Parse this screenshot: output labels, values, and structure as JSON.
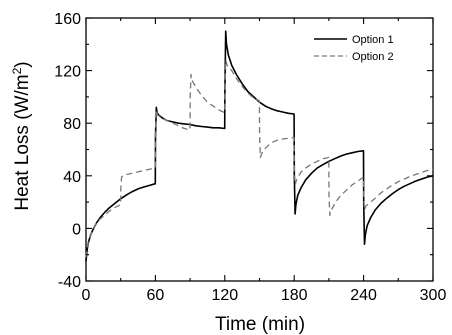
{
  "chart_data": {
    "type": "line",
    "xlabel": "Time (min)",
    "ylabel_main": "Heat Loss (W/m",
    "ylabel_sup": "2",
    "ylabel_end": ")",
    "xlim": [
      0,
      300
    ],
    "ylim": [
      -40,
      160
    ],
    "x_ticks": [
      0,
      60,
      120,
      180,
      240,
      300
    ],
    "y_ticks": [
      -40,
      0,
      40,
      80,
      120,
      160
    ],
    "grid": false,
    "legend_position": "top-right",
    "series": [
      {
        "name": "Option 1",
        "style": "solid",
        "color": "#000000",
        "points": [
          [
            0,
            -25
          ],
          [
            1,
            -16
          ],
          [
            2,
            -11
          ],
          [
            4,
            -5
          ],
          [
            6,
            -1
          ],
          [
            9,
            4
          ],
          [
            12,
            8
          ],
          [
            16,
            12
          ],
          [
            20,
            15.5
          ],
          [
            25,
            19
          ],
          [
            30,
            22.5
          ],
          [
            35,
            25.5
          ],
          [
            40,
            28
          ],
          [
            45,
            30
          ],
          [
            50,
            31.5
          ],
          [
            55,
            32.7
          ],
          [
            59.9,
            34
          ],
          [
            60.1,
            70
          ],
          [
            60.8,
            92
          ],
          [
            61.5,
            88
          ],
          [
            63,
            86
          ],
          [
            66,
            84
          ],
          [
            70,
            82
          ],
          [
            75,
            81
          ],
          [
            80,
            80
          ],
          [
            85,
            79.5
          ],
          [
            90,
            79
          ],
          [
            95,
            78
          ],
          [
            100,
            77.5
          ],
          [
            105,
            77
          ],
          [
            110,
            76.5
          ],
          [
            115,
            76.5
          ],
          [
            119.9,
            76
          ],
          [
            120.1,
            105
          ],
          [
            120.8,
            150
          ],
          [
            121.5,
            140
          ],
          [
            123,
            132
          ],
          [
            126,
            124
          ],
          [
            130,
            117
          ],
          [
            135,
            110
          ],
          [
            140,
            104
          ],
          [
            145,
            100
          ],
          [
            150,
            96
          ],
          [
            155,
            93
          ],
          [
            160,
            91
          ],
          [
            165,
            89.5
          ],
          [
            170,
            88.5
          ],
          [
            175,
            87.5
          ],
          [
            179.9,
            87
          ],
          [
            180.1,
            40
          ],
          [
            180.8,
            11
          ],
          [
            181.5,
            18
          ],
          [
            183,
            25
          ],
          [
            186,
            31
          ],
          [
            190,
            37
          ],
          [
            195,
            42
          ],
          [
            200,
            46
          ],
          [
            205,
            48.5
          ],
          [
            210,
            51
          ],
          [
            215,
            53
          ],
          [
            220,
            55
          ],
          [
            225,
            56.5
          ],
          [
            230,
            57.5
          ],
          [
            235,
            58.5
          ],
          [
            239.9,
            59
          ],
          [
            240.1,
            20
          ],
          [
            240.8,
            -12
          ],
          [
            241.5,
            -5
          ],
          [
            243,
            2
          ],
          [
            246,
            8
          ],
          [
            250,
            14
          ],
          [
            255,
            19
          ],
          [
            260,
            23
          ],
          [
            265,
            26.5
          ],
          [
            270,
            29.5
          ],
          [
            275,
            32
          ],
          [
            280,
            34
          ],
          [
            285,
            36
          ],
          [
            290,
            37.5
          ],
          [
            295,
            39
          ],
          [
            300,
            40
          ]
        ]
      },
      {
        "name": "Option 2",
        "style": "dashed",
        "color": "#777777",
        "points": [
          [
            0,
            -22
          ],
          [
            1,
            -15
          ],
          [
            2,
            -10
          ],
          [
            4,
            -5
          ],
          [
            6,
            -1
          ],
          [
            9,
            4
          ],
          [
            12,
            7
          ],
          [
            16,
            10
          ],
          [
            20,
            13
          ],
          [
            25,
            16
          ],
          [
            29.9,
            18
          ],
          [
            30.1,
            30
          ],
          [
            30.8,
            39
          ],
          [
            32,
            40
          ],
          [
            35,
            41
          ],
          [
            40,
            42
          ],
          [
            45,
            43
          ],
          [
            50,
            44
          ],
          [
            55,
            45
          ],
          [
            59.9,
            46
          ],
          [
            60.1,
            75
          ],
          [
            60.8,
            90
          ],
          [
            62,
            86
          ],
          [
            66,
            84
          ],
          [
            70,
            82
          ],
          [
            75,
            80
          ],
          [
            80,
            78
          ],
          [
            85,
            76
          ],
          [
            89.9,
            75
          ],
          [
            90.1,
            100
          ],
          [
            90.8,
            117
          ],
          [
            92,
            112
          ],
          [
            96,
            106
          ],
          [
            100,
            101
          ],
          [
            105,
            96
          ],
          [
            110,
            93
          ],
          [
            115,
            90
          ],
          [
            119.9,
            88
          ],
          [
            120.1,
            105
          ],
          [
            120.8,
            128
          ],
          [
            122,
            124
          ],
          [
            126,
            120
          ],
          [
            130,
            114
          ],
          [
            135,
            108
          ],
          [
            140,
            103
          ],
          [
            145,
            99
          ],
          [
            149.9,
            97
          ],
          [
            150.1,
            70
          ],
          [
            150.8,
            54
          ],
          [
            152,
            57
          ],
          [
            155,
            61
          ],
          [
            160,
            65
          ],
          [
            165,
            67
          ],
          [
            170,
            68
          ],
          [
            175,
            68.5
          ],
          [
            179.9,
            69
          ],
          [
            180.1,
            45
          ],
          [
            180.8,
            33
          ],
          [
            182,
            37
          ],
          [
            186,
            43
          ],
          [
            190,
            46
          ],
          [
            195,
            49
          ],
          [
            200,
            51
          ],
          [
            205,
            53
          ],
          [
            209.9,
            54
          ],
          [
            210.1,
            25
          ],
          [
            210.8,
            10
          ],
          [
            212,
            14
          ],
          [
            216,
            20
          ],
          [
            220,
            25
          ],
          [
            225,
            29
          ],
          [
            230,
            33
          ],
          [
            235,
            36
          ],
          [
            239.9,
            39
          ],
          [
            240.1,
            25
          ],
          [
            240.8,
            14
          ],
          [
            242,
            17
          ],
          [
            246,
            20
          ],
          [
            250,
            23
          ],
          [
            255,
            27
          ],
          [
            260,
            30
          ],
          [
            265,
            33
          ],
          [
            270,
            35.5
          ],
          [
            275,
            37.5
          ],
          [
            280,
            39.5
          ],
          [
            285,
            41
          ],
          [
            290,
            42.5
          ],
          [
            295,
            44
          ],
          [
            300,
            45
          ]
        ]
      }
    ]
  }
}
